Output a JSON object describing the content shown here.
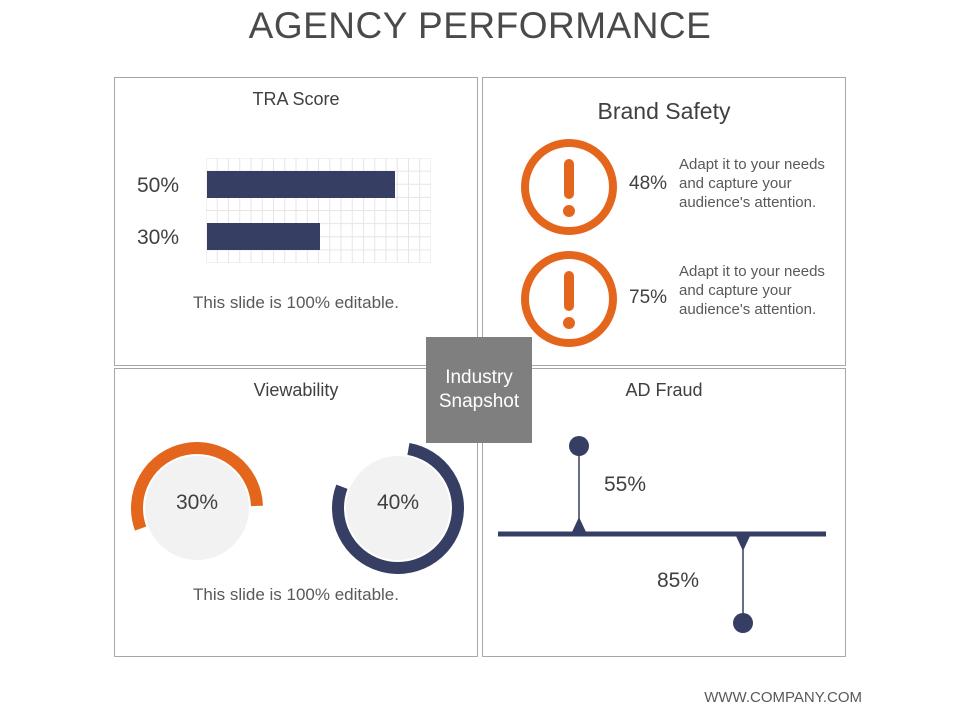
{
  "title": "AGENCY PERFORMANCE",
  "colors": {
    "orange": "#e4661c",
    "navy": "#363e63",
    "gray": "#7f7f7f",
    "light": "#f2f2f2"
  },
  "tra": {
    "title": "TRA Score",
    "bars": [
      {
        "label": "50%",
        "value": 50
      },
      {
        "label": "30%",
        "value": 30
      }
    ],
    "scale_max": 60,
    "note": "This slide is 100% editable."
  },
  "brand": {
    "title": "Brand Safety",
    "items": [
      {
        "icon": "warning-icon",
        "pct": "48%",
        "text": "Adapt it to your needs and capture your audience's attention."
      },
      {
        "icon": "warning-icon",
        "pct": "75%",
        "text": "Adapt it to your needs and capture your audience's attention."
      }
    ]
  },
  "center": {
    "line1": "Industry",
    "line2": "Snapshot"
  },
  "view": {
    "title": "Viewability",
    "donuts": [
      {
        "label": "30%",
        "value": 30,
        "color": "orange"
      },
      {
        "label": "40%",
        "value": 40,
        "color": "navy"
      }
    ],
    "note": "This slide is 100% editable."
  },
  "fraud": {
    "title": "AD Fraud",
    "items": [
      {
        "label": "55%"
      },
      {
        "label": "85%"
      }
    ]
  },
  "footer": "WWW.COMPANY.COM"
}
